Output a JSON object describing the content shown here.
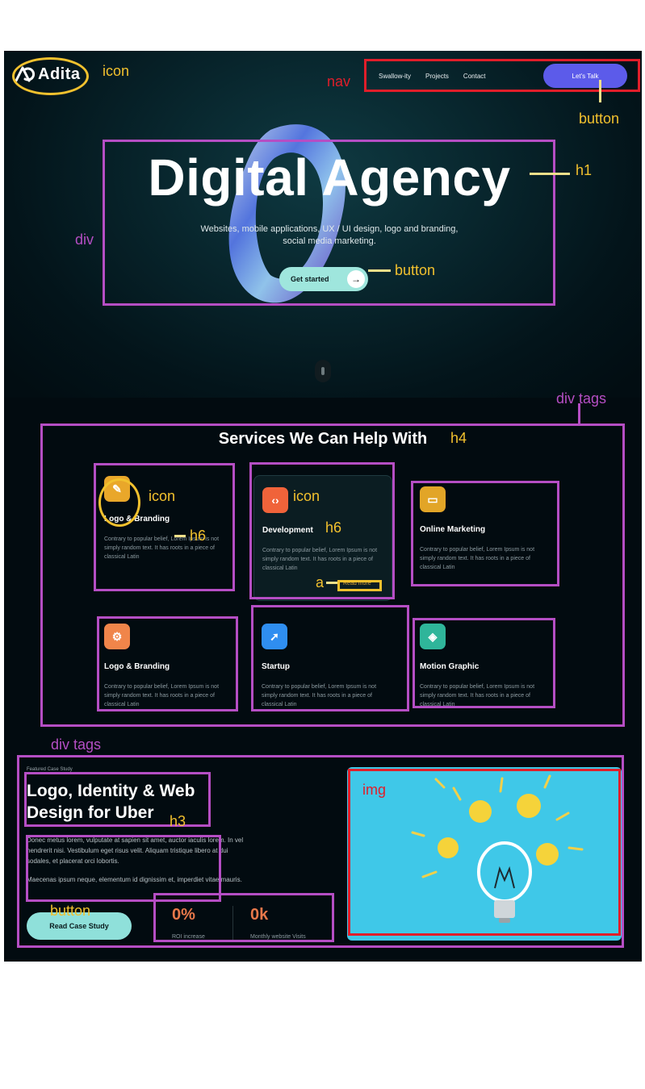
{
  "brand": {
    "name": "Adita"
  },
  "nav": {
    "items": [
      {
        "label": "Swallow-ity"
      },
      {
        "label": "Projects"
      },
      {
        "label": "Contact"
      }
    ],
    "cta_label": "Let's Talk"
  },
  "hero": {
    "title": "Digital Agency",
    "subtitle": "Websites, mobile applications, UX / UI design, logo and branding, social media marketing.",
    "cta_label": "Get started"
  },
  "services": {
    "title": "Services We Can Help With",
    "cards": [
      {
        "title": "Logo & Branding",
        "text": "Contrary to popular belief, Lorem Ipsum is not simply random text. It has roots in a piece of classical Latin",
        "icon": "pen-tool-icon",
        "color": "#e9a72a"
      },
      {
        "title": "Development",
        "text": "Contrary to popular belief, Lorem Ipsum is not simply random text. It has roots in a piece of classical Latin",
        "icon": "code-icon",
        "color": "#f0633a",
        "link": "Read more"
      },
      {
        "title": "Online Marketing",
        "text": "Contrary to popular belief, Lorem Ipsum is not simply random text. It has roots in a piece of classical Latin",
        "icon": "monitor-icon",
        "color": "#e2a527"
      },
      {
        "title": "Logo & Branding",
        "text": "Contrary to popular belief, Lorem Ipsum is not simply random text. It has roots in a piece of classical Latin",
        "icon": "gear-icon",
        "color": "#f0854a"
      },
      {
        "title": "Startup",
        "text": "Contrary to popular belief, Lorem Ipsum is not simply random text. It has roots in a piece of classical Latin",
        "icon": "rocket-icon",
        "color": "#2f8ef0"
      },
      {
        "title": "Motion Graphic",
        "text": "Contrary to popular belief, Lorem Ipsum is not simply random text. It has roots in a piece of classical Latin",
        "icon": "shapes-icon",
        "color": "#2fb59a"
      }
    ]
  },
  "case_study": {
    "kicker": "Featured Case Study",
    "title": "Logo, Identity & Web Design for Uber",
    "paragraphs": [
      "Donec metus lorem, vulputate at sapien sit amet, auctor iaculis lorem. In vel hendrerit nisi. Vestibulum eget risus velit. Aliquam tristique libero at dui sodales, et placerat orci lobortis.",
      "Maecenas ipsum neque, elementum id dignissim et, imperdiet vitae mauris."
    ],
    "cta_label": "Read Case Study",
    "stats": [
      {
        "value": "0%",
        "label": "ROI increase"
      },
      {
        "value": "0k",
        "label": "Monthly website Visits"
      }
    ],
    "image_icon": "lightbulb-icon"
  },
  "annotations": {
    "icon": "icon",
    "nav": "nav",
    "button": "button",
    "h1": "h1",
    "div": "div",
    "div_tags": "div tags",
    "h4": "h4",
    "h6": "h6",
    "a": "a",
    "h3": "h3",
    "img": "img"
  },
  "colors": {
    "annotation_purple": "#b54ec4",
    "annotation_red": "#e01e2a",
    "annotation_yellow": "#f2c12e",
    "accent_blue": "#5c5bea",
    "accent_teal": "#9fe6dd"
  }
}
